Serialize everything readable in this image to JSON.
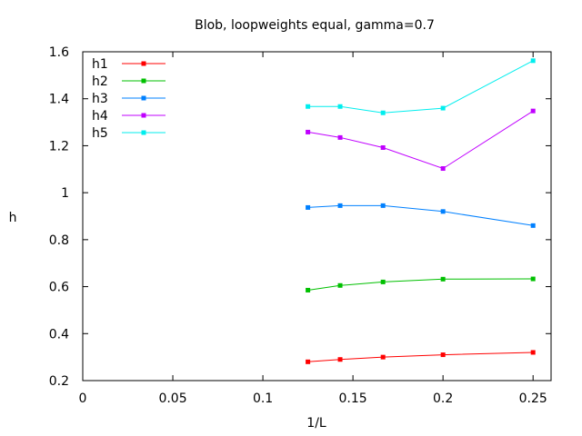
{
  "chart_data": {
    "type": "line",
    "title": "Blob, loopweights equal, gamma=0.7",
    "xlabel": "1/L",
    "ylabel": "h",
    "xlim": [
      0,
      0.26
    ],
    "ylim": [
      0.2,
      1.6
    ],
    "xticks": [
      0,
      0.05,
      0.1,
      0.15,
      0.2,
      0.25
    ],
    "xtick_labels": [
      "0",
      "0.05",
      "0.1",
      "0.15",
      "0.2",
      "0.25"
    ],
    "yticks": [
      0.2,
      0.4,
      0.6,
      0.8,
      1.0,
      1.2,
      1.4,
      1.6
    ],
    "ytick_labels": [
      "0.2",
      "0.4",
      "0.6",
      "0.8",
      "1",
      "1.2",
      "1.4",
      "1.6"
    ],
    "grid": false,
    "legend_position": "top-left",
    "x": [
      0.125,
      0.1429,
      0.1667,
      0.2,
      0.25
    ],
    "series": [
      {
        "name": "h1",
        "color": "#ff0000",
        "values": [
          0.28,
          0.29,
          0.3,
          0.31,
          0.32
        ]
      },
      {
        "name": "h2",
        "color": "#00c000",
        "values": [
          0.585,
          0.605,
          0.62,
          0.632,
          0.633
        ]
      },
      {
        "name": "h3",
        "color": "#0080ff",
        "values": [
          0.937,
          0.945,
          0.945,
          0.92,
          0.86
        ]
      },
      {
        "name": "h4",
        "color": "#c000ff",
        "values": [
          1.258,
          1.235,
          1.192,
          1.103,
          1.348
        ]
      },
      {
        "name": "h5",
        "color": "#00eeee",
        "values": [
          1.367,
          1.367,
          1.34,
          1.36,
          1.562
        ]
      }
    ]
  }
}
